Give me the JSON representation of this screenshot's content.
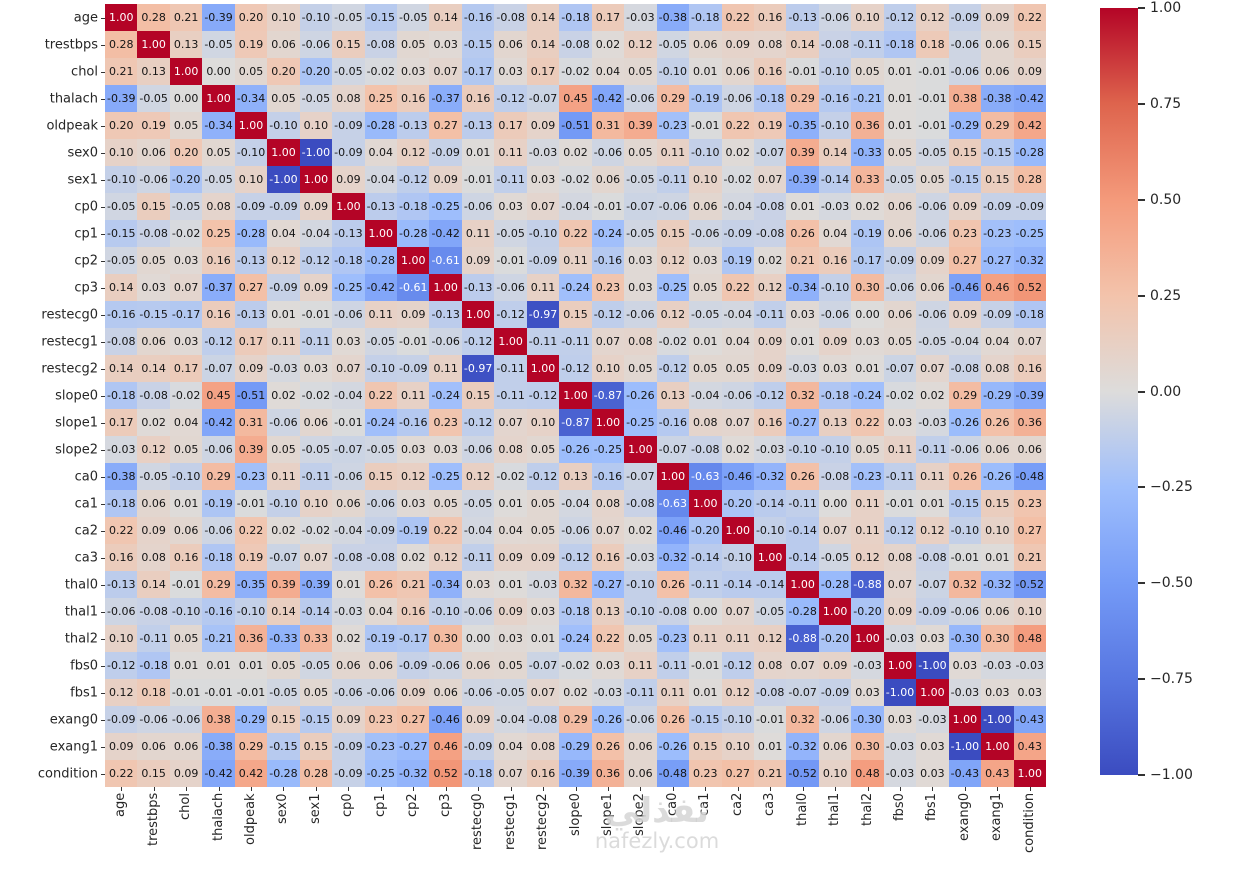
{
  "chart_data": {
    "type": "heatmap",
    "title": "",
    "colormap": "coolwarm",
    "vmin": -1.0,
    "vmax": 1.0,
    "annotation_format": "0.00",
    "legend_position": "right-colorbar",
    "grid": false,
    "labels": [
      "age",
      "trestbps",
      "chol",
      "thalach",
      "oldpeak",
      "sex0",
      "sex1",
      "cp0",
      "cp1",
      "cp2",
      "cp3",
      "restecg0",
      "restecg1",
      "restecg2",
      "slope0",
      "slope1",
      "slope2",
      "ca0",
      "ca1",
      "ca2",
      "ca3",
      "thal0",
      "thal1",
      "thal2",
      "fbs0",
      "fbs1",
      "exang0",
      "exang1",
      "condition"
    ],
    "matrix": [
      [
        1.0,
        0.28,
        0.21,
        -0.39,
        0.2,
        0.1,
        -0.1,
        -0.05,
        -0.15,
        -0.05,
        0.14,
        -0.16,
        -0.08,
        0.14,
        -0.18,
        0.17,
        -0.03,
        -0.38,
        -0.18,
        0.22,
        0.16,
        -0.13,
        -0.06,
        0.1,
        -0.12,
        0.12,
        -0.09,
        0.09,
        0.22
      ],
      [
        0.28,
        1.0,
        0.13,
        -0.05,
        0.19,
        0.06,
        -0.06,
        0.15,
        -0.08,
        0.05,
        0.03,
        -0.15,
        0.06,
        0.14,
        -0.08,
        0.02,
        0.12,
        -0.05,
        0.06,
        0.09,
        0.08,
        0.14,
        -0.08,
        -0.11,
        -0.18,
        0.18,
        -0.06,
        0.06,
        0.15
      ],
      [
        0.21,
        0.13,
        1.0,
        0.0,
        0.05,
        0.2,
        -0.2,
        -0.05,
        -0.02,
        0.03,
        0.07,
        -0.17,
        0.03,
        0.17,
        -0.02,
        0.04,
        0.05,
        -0.1,
        0.01,
        0.06,
        0.16,
        -0.01,
        -0.1,
        0.05,
        0.01,
        -0.01,
        -0.06,
        0.06,
        0.09
      ],
      [
        -0.39,
        -0.05,
        0.0,
        1.0,
        -0.34,
        0.05,
        -0.05,
        0.08,
        0.25,
        0.16,
        -0.37,
        0.16,
        -0.12,
        -0.07,
        0.45,
        -0.42,
        -0.06,
        0.29,
        -0.19,
        -0.06,
        -0.18,
        0.29,
        -0.16,
        -0.21,
        0.01,
        -0.01,
        0.38,
        -0.38,
        -0.42
      ],
      [
        0.2,
        0.19,
        0.05,
        -0.34,
        1.0,
        -0.1,
        0.1,
        -0.09,
        -0.28,
        -0.13,
        0.27,
        -0.13,
        0.17,
        0.09,
        -0.51,
        0.31,
        0.39,
        -0.23,
        -0.01,
        0.22,
        0.19,
        -0.35,
        -0.1,
        0.36,
        0.01,
        -0.01,
        -0.29,
        0.29,
        0.42
      ],
      [
        0.1,
        0.06,
        0.2,
        0.05,
        -0.1,
        1.0,
        -1.0,
        -0.09,
        0.04,
        0.12,
        -0.09,
        0.01,
        0.11,
        -0.03,
        0.02,
        -0.06,
        0.05,
        0.11,
        -0.1,
        0.02,
        -0.07,
        0.39,
        0.14,
        -0.33,
        0.05,
        -0.05,
        0.15,
        -0.15,
        -0.28
      ],
      [
        -0.1,
        -0.06,
        -0.2,
        -0.05,
        0.1,
        -1.0,
        1.0,
        0.09,
        -0.04,
        -0.12,
        0.09,
        -0.01,
        -0.11,
        0.03,
        -0.02,
        0.06,
        -0.05,
        -0.11,
        0.1,
        -0.02,
        0.07,
        -0.39,
        -0.14,
        0.33,
        -0.05,
        0.05,
        -0.15,
        0.15,
        0.28
      ],
      [
        -0.05,
        0.15,
        -0.05,
        0.08,
        -0.09,
        -0.09,
        0.09,
        1.0,
        -0.13,
        -0.18,
        -0.25,
        -0.06,
        0.03,
        0.07,
        -0.04,
        -0.01,
        -0.07,
        -0.06,
        0.06,
        -0.04,
        -0.08,
        0.01,
        -0.03,
        0.02,
        0.06,
        -0.06,
        0.09,
        -0.09,
        -0.09
      ],
      [
        -0.15,
        -0.08,
        -0.02,
        0.25,
        -0.28,
        0.04,
        -0.04,
        -0.13,
        1.0,
        -0.28,
        -0.42,
        0.11,
        -0.05,
        -0.1,
        0.22,
        -0.24,
        -0.05,
        0.15,
        -0.06,
        -0.09,
        -0.08,
        0.26,
        0.04,
        -0.19,
        0.06,
        -0.06,
        0.23,
        -0.23,
        -0.25
      ],
      [
        -0.05,
        0.05,
        0.03,
        0.16,
        -0.13,
        0.12,
        -0.12,
        -0.18,
        -0.28,
        1.0,
        -0.61,
        0.09,
        -0.01,
        -0.09,
        0.11,
        -0.16,
        0.03,
        0.12,
        0.03,
        -0.19,
        0.02,
        0.21,
        0.16,
        -0.17,
        -0.09,
        0.09,
        0.27,
        -0.27,
        -0.32
      ],
      [
        0.14,
        0.03,
        0.07,
        -0.37,
        0.27,
        -0.09,
        0.09,
        -0.25,
        -0.42,
        -0.61,
        1.0,
        -0.13,
        -0.06,
        0.11,
        -0.24,
        0.23,
        0.03,
        -0.25,
        0.05,
        0.22,
        0.12,
        -0.34,
        -0.1,
        0.3,
        -0.06,
        0.06,
        -0.46,
        0.46,
        0.52
      ],
      [
        -0.16,
        -0.15,
        -0.17,
        0.16,
        -0.13,
        0.01,
        -0.01,
        -0.06,
        0.11,
        0.09,
        -0.13,
        1.0,
        -0.12,
        -0.97,
        0.15,
        -0.12,
        -0.06,
        0.12,
        -0.05,
        -0.04,
        -0.11,
        0.03,
        -0.06,
        0.0,
        0.06,
        -0.06,
        0.09,
        -0.09,
        -0.18
      ],
      [
        -0.08,
        0.06,
        0.03,
        -0.12,
        0.17,
        0.11,
        -0.11,
        0.03,
        -0.05,
        -0.01,
        -0.06,
        -0.12,
        1.0,
        -0.11,
        -0.11,
        0.07,
        0.08,
        -0.02,
        0.01,
        0.04,
        0.09,
        0.01,
        0.09,
        0.03,
        0.05,
        -0.05,
        -0.04,
        0.04,
        0.07
      ],
      [
        0.14,
        0.14,
        0.17,
        -0.07,
        0.09,
        -0.03,
        0.03,
        0.07,
        -0.1,
        -0.09,
        0.11,
        -0.97,
        -0.11,
        1.0,
        -0.12,
        0.1,
        0.05,
        -0.12,
        0.05,
        0.05,
        0.09,
        -0.03,
        0.03,
        0.01,
        -0.07,
        0.07,
        -0.08,
        0.08,
        0.16
      ],
      [
        -0.18,
        -0.08,
        -0.02,
        0.45,
        -0.51,
        0.02,
        -0.02,
        -0.04,
        0.22,
        0.11,
        -0.24,
        0.15,
        -0.11,
        -0.12,
        1.0,
        -0.87,
        -0.26,
        0.13,
        -0.04,
        -0.06,
        -0.12,
        0.32,
        -0.18,
        -0.24,
        -0.02,
        0.02,
        0.29,
        -0.29,
        -0.39
      ],
      [
        0.17,
        0.02,
        0.04,
        -0.42,
        0.31,
        -0.06,
        0.06,
        -0.01,
        -0.24,
        -0.16,
        0.23,
        -0.12,
        0.07,
        0.1,
        -0.87,
        1.0,
        -0.25,
        -0.16,
        0.08,
        0.07,
        0.16,
        -0.27,
        0.13,
        0.22,
        0.03,
        -0.03,
        -0.26,
        0.26,
        0.36
      ],
      [
        -0.03,
        0.12,
        0.05,
        -0.06,
        0.39,
        0.05,
        -0.05,
        -0.07,
        -0.05,
        0.03,
        0.03,
        -0.06,
        0.08,
        0.05,
        -0.26,
        -0.25,
        1.0,
        -0.07,
        -0.08,
        0.02,
        -0.03,
        -0.1,
        -0.1,
        0.05,
        0.11,
        -0.11,
        -0.06,
        0.06,
        0.06
      ],
      [
        -0.38,
        -0.05,
        -0.1,
        0.29,
        -0.23,
        0.11,
        -0.11,
        -0.06,
        0.15,
        0.12,
        -0.25,
        0.12,
        -0.02,
        -0.12,
        0.13,
        -0.16,
        -0.07,
        1.0,
        -0.63,
        -0.46,
        -0.32,
        0.26,
        -0.08,
        -0.23,
        -0.11,
        0.11,
        0.26,
        -0.26,
        -0.48
      ],
      [
        -0.18,
        0.06,
        0.01,
        -0.19,
        -0.01,
        -0.1,
        0.1,
        0.06,
        -0.06,
        0.03,
        0.05,
        -0.05,
        0.01,
        0.05,
        -0.04,
        0.08,
        -0.08,
        -0.63,
        1.0,
        -0.2,
        -0.14,
        -0.11,
        0.0,
        0.11,
        -0.01,
        0.01,
        -0.15,
        0.15,
        0.23
      ],
      [
        0.22,
        0.09,
        0.06,
        -0.06,
        0.22,
        0.02,
        -0.02,
        -0.04,
        -0.09,
        -0.19,
        0.22,
        -0.04,
        0.04,
        0.05,
        -0.06,
        0.07,
        0.02,
        -0.46,
        -0.2,
        1.0,
        -0.1,
        -0.14,
        0.07,
        0.11,
        -0.12,
        0.12,
        -0.1,
        0.1,
        0.27
      ],
      [
        0.16,
        0.08,
        0.16,
        -0.18,
        0.19,
        -0.07,
        0.07,
        -0.08,
        -0.08,
        0.02,
        0.12,
        -0.11,
        0.09,
        0.09,
        -0.12,
        0.16,
        -0.03,
        -0.32,
        -0.14,
        -0.1,
        1.0,
        -0.14,
        -0.05,
        0.12,
        0.08,
        -0.08,
        -0.01,
        0.01,
        0.21
      ],
      [
        -0.13,
        0.14,
        -0.01,
        0.29,
        -0.35,
        0.39,
        -0.39,
        0.01,
        0.26,
        0.21,
        -0.34,
        0.03,
        0.01,
        -0.03,
        0.32,
        -0.27,
        -0.1,
        0.26,
        -0.11,
        -0.14,
        -0.14,
        1.0,
        -0.28,
        -0.88,
        0.07,
        -0.07,
        0.32,
        -0.32,
        -0.52
      ],
      [
        -0.06,
        -0.08,
        -0.1,
        -0.16,
        -0.1,
        0.14,
        -0.14,
        -0.03,
        0.04,
        0.16,
        -0.1,
        -0.06,
        0.09,
        0.03,
        -0.18,
        0.13,
        -0.1,
        -0.08,
        0.0,
        0.07,
        -0.05,
        -0.28,
        1.0,
        -0.2,
        0.09,
        -0.09,
        -0.06,
        0.06,
        0.1
      ],
      [
        0.1,
        -0.11,
        0.05,
        -0.21,
        0.36,
        -0.33,
        0.33,
        0.02,
        -0.19,
        -0.17,
        0.3,
        0.0,
        0.03,
        0.01,
        -0.24,
        0.22,
        0.05,
        -0.23,
        0.11,
        0.11,
        0.12,
        -0.88,
        -0.2,
        1.0,
        -0.03,
        0.03,
        -0.3,
        0.3,
        0.48
      ],
      [
        -0.12,
        -0.18,
        0.01,
        0.01,
        0.01,
        0.05,
        -0.05,
        0.06,
        0.06,
        -0.09,
        -0.06,
        0.06,
        0.05,
        -0.07,
        -0.02,
        0.03,
        0.11,
        -0.11,
        -0.01,
        -0.12,
        0.08,
        0.07,
        0.09,
        -0.03,
        1.0,
        -1.0,
        0.03,
        -0.03,
        -0.03
      ],
      [
        0.12,
        0.18,
        -0.01,
        -0.01,
        -0.01,
        -0.05,
        0.05,
        -0.06,
        -0.06,
        0.09,
        0.06,
        -0.06,
        -0.05,
        0.07,
        0.02,
        -0.03,
        -0.11,
        0.11,
        0.01,
        0.12,
        -0.08,
        -0.07,
        -0.09,
        0.03,
        -1.0,
        1.0,
        -0.03,
        0.03,
        0.03
      ],
      [
        -0.09,
        -0.06,
        -0.06,
        0.38,
        -0.29,
        0.15,
        -0.15,
        0.09,
        0.23,
        0.27,
        -0.46,
        0.09,
        -0.04,
        -0.08,
        0.29,
        -0.26,
        -0.06,
        0.26,
        -0.15,
        -0.1,
        -0.01,
        0.32,
        -0.06,
        -0.3,
        0.03,
        -0.03,
        1.0,
        -1.0,
        -0.43
      ],
      [
        0.09,
        0.06,
        0.06,
        -0.38,
        0.29,
        -0.15,
        0.15,
        -0.09,
        -0.23,
        -0.27,
        0.46,
        -0.09,
        0.04,
        0.08,
        -0.29,
        0.26,
        0.06,
        -0.26,
        0.15,
        0.1,
        0.01,
        -0.32,
        0.06,
        0.3,
        -0.03,
        0.03,
        -1.0,
        1.0,
        0.43
      ],
      [
        0.22,
        0.15,
        0.09,
        -0.42,
        0.42,
        -0.28,
        0.28,
        -0.09,
        -0.25,
        -0.32,
        0.52,
        -0.18,
        0.07,
        0.16,
        -0.39,
        0.36,
        0.06,
        -0.48,
        0.23,
        0.27,
        0.21,
        -0.52,
        0.1,
        0.48,
        -0.03,
        0.03,
        -0.43,
        0.43,
        1.0
      ]
    ],
    "colorbar_ticks": [
      "1.00",
      "0.75",
      "0.50",
      "0.25",
      "0.00",
      "−0.25",
      "−0.50",
      "−0.75",
      "−1.00"
    ]
  },
  "colors": {
    "background": "#ffffff",
    "cmap_positive_max": "#b40426",
    "cmap_zero": "#dddcdb",
    "cmap_negative_max": "#3b4cc0",
    "annotation_dark": "#151515",
    "annotation_light": "#ffffff",
    "axis_label": "#262626"
  },
  "watermark": {
    "arabic": "نفذلي",
    "domain": "nafezly.com"
  }
}
